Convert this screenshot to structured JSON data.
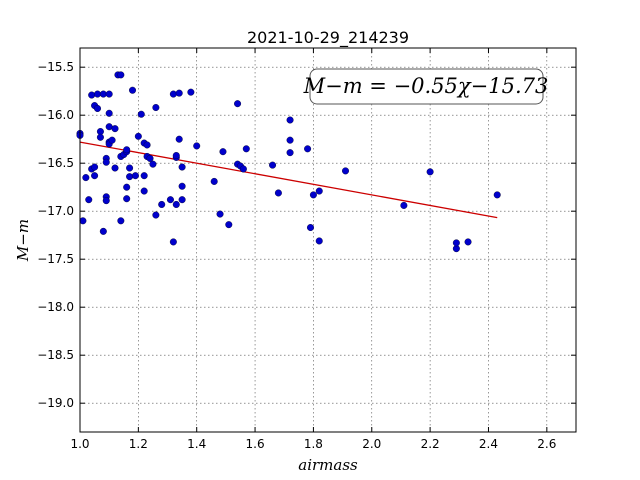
{
  "chart_data": {
    "type": "scatter",
    "title": "2021-10-29_214239",
    "xlabel": "airmass",
    "ylabel": "M−m",
    "xlim": [
      1.0,
      2.7
    ],
    "ylim": [
      -19.3,
      -15.3
    ],
    "y_inverted": true,
    "grid": true,
    "x_ticks": [
      "1.0",
      "1.2",
      "1.4",
      "1.6",
      "1.8",
      "2.0",
      "2.2",
      "2.4",
      "2.6"
    ],
    "y_ticks": [
      "−15.5",
      "−16.0",
      "−16.5",
      "−17.0",
      "−17.5",
      "−18.0",
      "−18.5",
      "−19.0"
    ],
    "annotation": "M−m = −0.55χ−15.73",
    "fit": {
      "slope": -0.55,
      "intercept": -15.73,
      "x_range": [
        1.0,
        2.43
      ],
      "color": "#cc0000"
    },
    "point_color": "#0000cc",
    "points": [
      [
        1.0,
        -16.19
      ],
      [
        1.0,
        -16.21
      ],
      [
        1.01,
        -17.1
      ],
      [
        1.02,
        -16.65
      ],
      [
        1.03,
        -16.88
      ],
      [
        1.04,
        -15.79
      ],
      [
        1.04,
        -16.56
      ],
      [
        1.05,
        -16.54
      ],
      [
        1.05,
        -16.63
      ],
      [
        1.05,
        -15.9
      ],
      [
        1.06,
        -15.93
      ],
      [
        1.06,
        -15.78
      ],
      [
        1.07,
        -16.17
      ],
      [
        1.07,
        -16.23
      ],
      [
        1.08,
        -17.21
      ],
      [
        1.08,
        -15.78
      ],
      [
        1.09,
        -16.45
      ],
      [
        1.09,
        -16.49
      ],
      [
        1.09,
        -16.85
      ],
      [
        1.09,
        -16.89
      ],
      [
        1.1,
        -16.12
      ],
      [
        1.1,
        -15.78
      ],
      [
        1.1,
        -16.28
      ],
      [
        1.1,
        -16.3
      ],
      [
        1.1,
        -15.98
      ],
      [
        1.11,
        -16.26
      ],
      [
        1.12,
        -16.55
      ],
      [
        1.12,
        -16.14
      ],
      [
        1.13,
        -15.58
      ],
      [
        1.14,
        -15.58
      ],
      [
        1.14,
        -17.1
      ],
      [
        1.14,
        -16.43
      ],
      [
        1.15,
        -16.41
      ],
      [
        1.16,
        -16.87
      ],
      [
        1.16,
        -16.75
      ],
      [
        1.16,
        -16.38
      ],
      [
        1.16,
        -16.36
      ],
      [
        1.17,
        -16.55
      ],
      [
        1.17,
        -16.64
      ],
      [
        1.18,
        -15.74
      ],
      [
        1.19,
        -16.63
      ],
      [
        1.2,
        -16.22
      ],
      [
        1.21,
        -15.99
      ],
      [
        1.22,
        -16.29
      ],
      [
        1.22,
        -16.79
      ],
      [
        1.22,
        -16.63
      ],
      [
        1.23,
        -16.31
      ],
      [
        1.23,
        -16.43
      ],
      [
        1.24,
        -16.45
      ],
      [
        1.25,
        -16.51
      ],
      [
        1.26,
        -15.92
      ],
      [
        1.26,
        -17.04
      ],
      [
        1.28,
        -16.93
      ],
      [
        1.31,
        -16.88
      ],
      [
        1.32,
        -15.78
      ],
      [
        1.32,
        -17.32
      ],
      [
        1.33,
        -16.44
      ],
      [
        1.33,
        -16.42
      ],
      [
        1.33,
        -16.93
      ],
      [
        1.34,
        -15.77
      ],
      [
        1.34,
        -16.25
      ],
      [
        1.35,
        -16.74
      ],
      [
        1.35,
        -16.54
      ],
      [
        1.35,
        -16.88
      ],
      [
        1.38,
        -15.76
      ],
      [
        1.4,
        -16.32
      ],
      [
        1.46,
        -16.69
      ],
      [
        1.48,
        -17.03
      ],
      [
        1.49,
        -16.38
      ],
      [
        1.51,
        -17.14
      ],
      [
        1.54,
        -16.51
      ],
      [
        1.54,
        -15.88
      ],
      [
        1.55,
        -16.53
      ],
      [
        1.56,
        -16.56
      ],
      [
        1.57,
        -16.35
      ],
      [
        1.66,
        -16.52
      ],
      [
        1.68,
        -16.81
      ],
      [
        1.72,
        -16.05
      ],
      [
        1.72,
        -16.26
      ],
      [
        1.72,
        -16.39
      ],
      [
        1.78,
        -16.35
      ],
      [
        1.79,
        -17.17
      ],
      [
        1.8,
        -16.83
      ],
      [
        1.82,
        -17.31
      ],
      [
        1.82,
        -16.79
      ],
      [
        1.91,
        -16.58
      ],
      [
        2.11,
        -16.94
      ],
      [
        2.2,
        -16.59
      ],
      [
        2.29,
        -17.39
      ],
      [
        2.29,
        -17.33
      ],
      [
        2.33,
        -17.32
      ],
      [
        2.43,
        -16.83
      ]
    ]
  }
}
